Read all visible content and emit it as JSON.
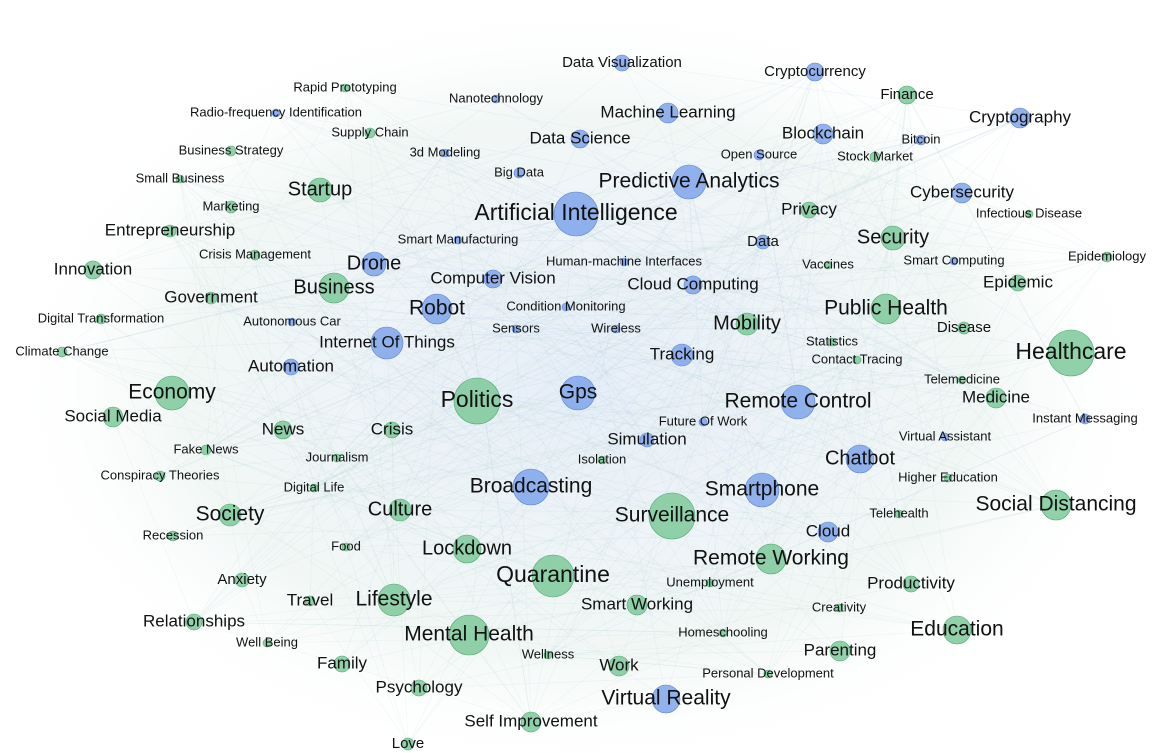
{
  "nodes": [
    {
      "label": "Data Visualization"
    },
    {
      "label": "Cryptocurrency"
    },
    {
      "label": "Rapid Prototyping"
    },
    {
      "label": "Nanotechnology"
    },
    {
      "label": "Finance"
    },
    {
      "label": "Radio-frequency Identification"
    },
    {
      "label": "Machine Learning"
    },
    {
      "label": "Cryptography"
    },
    {
      "label": "Supply Chain"
    },
    {
      "label": "Data Science"
    },
    {
      "label": "Blockchain"
    },
    {
      "label": "Bitcoin"
    },
    {
      "label": "Business Strategy"
    },
    {
      "label": "3d Modeling"
    },
    {
      "label": "Open Source"
    },
    {
      "label": "Stock Market"
    },
    {
      "label": "Small Business"
    },
    {
      "label": "Big Data"
    },
    {
      "label": "Startup"
    },
    {
      "label": "Predictive Analytics"
    },
    {
      "label": "Cybersecurity"
    },
    {
      "label": "Marketing"
    },
    {
      "label": "Artificial Intelligence"
    },
    {
      "label": "Privacy"
    },
    {
      "label": "Infectious Disease"
    },
    {
      "label": "Entrepreneurship"
    },
    {
      "label": "Smart Manufacturing"
    },
    {
      "label": "Security"
    },
    {
      "label": "Data"
    },
    {
      "label": "Crisis Management"
    },
    {
      "label": "Human-machine Interfaces"
    },
    {
      "label": "Drone"
    },
    {
      "label": "Vaccines"
    },
    {
      "label": "Smart Computing"
    },
    {
      "label": "Epidemiology"
    },
    {
      "label": "Innovation"
    },
    {
      "label": "Computer Vision"
    },
    {
      "label": "Cloud Computing"
    },
    {
      "label": "Epidemic"
    },
    {
      "label": "Business"
    },
    {
      "label": "Government"
    },
    {
      "label": "Robot"
    },
    {
      "label": "Condition Monitoring"
    },
    {
      "label": "Public Health"
    },
    {
      "label": "Digital Transformation"
    },
    {
      "label": "Autonomous Car"
    },
    {
      "label": "Mobility"
    },
    {
      "label": "Sensors"
    },
    {
      "label": "Wireless"
    },
    {
      "label": "Disease"
    },
    {
      "label": "Internet Of Things"
    },
    {
      "label": "Statistics"
    },
    {
      "label": "Climate Change"
    },
    {
      "label": "Healthcare"
    },
    {
      "label": "Tracking"
    },
    {
      "label": "Contact Tracing"
    },
    {
      "label": "Automation"
    },
    {
      "label": "Economy"
    },
    {
      "label": "Telemedicine"
    },
    {
      "label": "Politics"
    },
    {
      "label": "Gps"
    },
    {
      "label": "Remote Control"
    },
    {
      "label": "Medicine"
    },
    {
      "label": "Social Media"
    },
    {
      "label": "Future Of Work"
    },
    {
      "label": "Instant Messaging"
    },
    {
      "label": "News"
    },
    {
      "label": "Crisis"
    },
    {
      "label": "Simulation"
    },
    {
      "label": "Virtual Assistant"
    },
    {
      "label": "Fake News"
    },
    {
      "label": "Journalism"
    },
    {
      "label": "Isolation"
    },
    {
      "label": "Chatbot"
    },
    {
      "label": "Conspiracy Theories"
    },
    {
      "label": "Higher Education"
    },
    {
      "label": "Digital Life"
    },
    {
      "label": "Broadcasting"
    },
    {
      "label": "Smartphone"
    },
    {
      "label": "Society"
    },
    {
      "label": "Culture"
    },
    {
      "label": "Surveillance"
    },
    {
      "label": "Social Distancing"
    },
    {
      "label": "Telehealth"
    },
    {
      "label": "Recession"
    },
    {
      "label": "Cloud"
    },
    {
      "label": "Food"
    },
    {
      "label": "Lockdown"
    },
    {
      "label": "Remote Working"
    },
    {
      "label": "Quarantine"
    },
    {
      "label": "Anxiety"
    },
    {
      "label": "Unemployment"
    },
    {
      "label": "Productivity"
    },
    {
      "label": "Travel"
    },
    {
      "label": "Lifestyle"
    },
    {
      "label": "Smart Working"
    },
    {
      "label": "Creativity"
    },
    {
      "label": "Relationships"
    },
    {
      "label": "Education"
    },
    {
      "label": "Mental Health"
    },
    {
      "label": "Homeschooling"
    },
    {
      "label": "Well Being"
    },
    {
      "label": "Parenting"
    },
    {
      "label": "Wellness"
    },
    {
      "label": "Family"
    },
    {
      "label": "Work"
    },
    {
      "label": "Personal Development"
    },
    {
      "label": "Psychology"
    },
    {
      "label": "Virtual Reality"
    },
    {
      "label": "Self Improvement"
    },
    {
      "label": "Love"
    }
  ]
}
